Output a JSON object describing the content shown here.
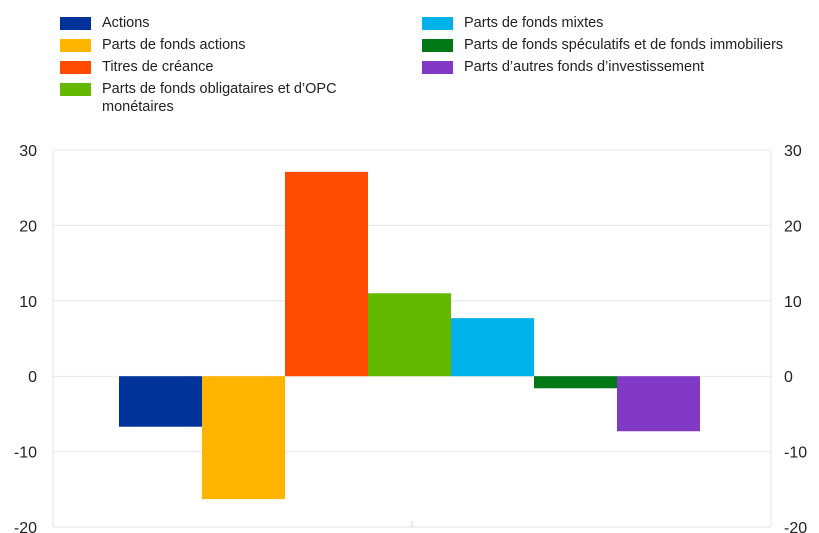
{
  "chart_data": {
    "type": "bar",
    "title": "",
    "xlabel": "",
    "ylabel": "",
    "ylim": [
      -20,
      30
    ],
    "yticks": [
      30,
      20,
      10,
      0,
      -10,
      -20
    ],
    "grid": true,
    "legend_position": "top",
    "series": [
      {
        "name": "Actions",
        "value": -6.7,
        "color": "#003299"
      },
      {
        "name": "Parts de fonds actions",
        "value": -16.3,
        "color": "#ffb400"
      },
      {
        "name": "Titres de créance",
        "value": 27.1,
        "color": "#ff4b00"
      },
      {
        "name": "Parts de fonds obligataires et d’OPC monétaires",
        "value": 11.0,
        "color": "#65b800"
      },
      {
        "name": "Parts de fonds mixtes",
        "value": 7.7,
        "color": "#00b1ea"
      },
      {
        "name": "Parts de fonds spéculatifs et de fonds immobiliers",
        "value": -1.6,
        "color": "#007816"
      },
      {
        "name": "Parts d’autres fonds d’investissement",
        "value": -7.3,
        "color": "#8139c6"
      }
    ]
  }
}
